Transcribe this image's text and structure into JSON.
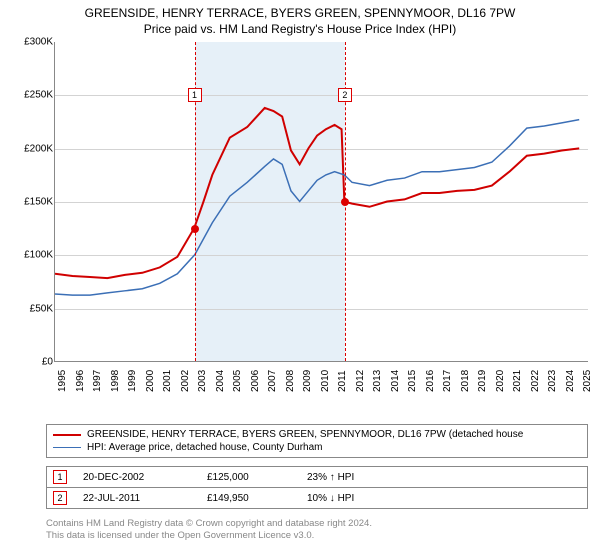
{
  "title_line1": "GREENSIDE, HENRY TERRACE, BYERS GREEN, SPENNYMOOR, DL16 7PW",
  "title_line2": "Price paid vs. HM Land Registry's House Price Index (HPI)",
  "chart": {
    "type": "line",
    "background_color": "#ffffff",
    "grid_color": "#d3d3d3",
    "axis_color": "#888888",
    "shaded_band_color": "#e6f0f8",
    "shaded_band_xstart": 2002.97,
    "shaded_band_xend": 2011.56,
    "x_axis": {
      "min": 1995,
      "max": 2025.5,
      "ticks": [
        1995,
        1996,
        1997,
        1998,
        1999,
        2000,
        2001,
        2002,
        2003,
        2004,
        2005,
        2006,
        2007,
        2008,
        2009,
        2010,
        2011,
        2012,
        2013,
        2014,
        2015,
        2016,
        2017,
        2018,
        2019,
        2020,
        2021,
        2022,
        2023,
        2024,
        2025
      ],
      "label_fontsize": 10,
      "label_rotation": -90
    },
    "y_axis": {
      "min": 0,
      "max": 300000,
      "ticks": [
        0,
        50000,
        100000,
        150000,
        200000,
        250000,
        300000
      ],
      "tick_labels": [
        "£0",
        "£50K",
        "£100K",
        "£150K",
        "£200K",
        "£250K",
        "£300K"
      ],
      "label_fontsize": 10
    },
    "series": [
      {
        "id": "greenside",
        "label": "GREENSIDE, HENRY TERRACE, BYERS GREEN, SPENNYMOOR, DL16 7PW (detached house",
        "color": "#d00000",
        "line_width": 2,
        "points": [
          [
            1995,
            82000
          ],
          [
            1996,
            80000
          ],
          [
            1997,
            79000
          ],
          [
            1998,
            78000
          ],
          [
            1999,
            81000
          ],
          [
            2000,
            83000
          ],
          [
            2001,
            88000
          ],
          [
            2002,
            98000
          ],
          [
            2002.97,
            125000
          ],
          [
            2003.5,
            150000
          ],
          [
            2004,
            175000
          ],
          [
            2005,
            210000
          ],
          [
            2006,
            220000
          ],
          [
            2007,
            238000
          ],
          [
            2007.5,
            235000
          ],
          [
            2008,
            230000
          ],
          [
            2008.5,
            198000
          ],
          [
            2009,
            185000
          ],
          [
            2009.5,
            200000
          ],
          [
            2010,
            212000
          ],
          [
            2010.5,
            218000
          ],
          [
            2011,
            222000
          ],
          [
            2011.4,
            218000
          ],
          [
            2011.56,
            149950
          ],
          [
            2012,
            148000
          ],
          [
            2013,
            145000
          ],
          [
            2014,
            150000
          ],
          [
            2015,
            152000
          ],
          [
            2016,
            158000
          ],
          [
            2017,
            158000
          ],
          [
            2018,
            160000
          ],
          [
            2019,
            161000
          ],
          [
            2020,
            165000
          ],
          [
            2021,
            178000
          ],
          [
            2022,
            193000
          ],
          [
            2023,
            195000
          ],
          [
            2024,
            198000
          ],
          [
            2025,
            200000
          ]
        ]
      },
      {
        "id": "hpi",
        "label": "HPI: Average price, detached house, County Durham",
        "color": "#3b6fb6",
        "line_width": 1.5,
        "points": [
          [
            1995,
            63000
          ],
          [
            1996,
            62000
          ],
          [
            1997,
            62000
          ],
          [
            1998,
            64000
          ],
          [
            1999,
            66000
          ],
          [
            2000,
            68000
          ],
          [
            2001,
            73000
          ],
          [
            2002,
            82000
          ],
          [
            2003,
            100000
          ],
          [
            2004,
            130000
          ],
          [
            2005,
            155000
          ],
          [
            2006,
            168000
          ],
          [
            2007,
            183000
          ],
          [
            2007.5,
            190000
          ],
          [
            2008,
            185000
          ],
          [
            2008.5,
            160000
          ],
          [
            2009,
            150000
          ],
          [
            2009.5,
            160000
          ],
          [
            2010,
            170000
          ],
          [
            2010.5,
            175000
          ],
          [
            2011,
            178000
          ],
          [
            2011.56,
            175000
          ],
          [
            2012,
            168000
          ],
          [
            2013,
            165000
          ],
          [
            2014,
            170000
          ],
          [
            2015,
            172000
          ],
          [
            2016,
            178000
          ],
          [
            2017,
            178000
          ],
          [
            2018,
            180000
          ],
          [
            2019,
            182000
          ],
          [
            2020,
            187000
          ],
          [
            2021,
            202000
          ],
          [
            2022,
            219000
          ],
          [
            2023,
            221000
          ],
          [
            2024,
            224000
          ],
          [
            2025,
            227000
          ]
        ]
      }
    ],
    "markers": [
      {
        "n": "1",
        "x": 2002.97,
        "y": 125000,
        "box_y": 250000
      },
      {
        "n": "2",
        "x": 2011.56,
        "y": 149950,
        "box_y": 250000
      }
    ]
  },
  "legend": {
    "fontsize": 10,
    "border_color": "#888888"
  },
  "marker_table": {
    "rows": [
      {
        "n": "1",
        "date": "20-DEC-2002",
        "price": "£125,000",
        "pct": "23% ↑ HPI"
      },
      {
        "n": "2",
        "date": "22-JUL-2011",
        "price": "£149,950",
        "pct": "10% ↓ HPI"
      }
    ],
    "fontsize": 10,
    "border_color": "#888888"
  },
  "footer": {
    "line1": "Contains HM Land Registry data © Crown copyright and database right 2024.",
    "line2": "This data is licensed under the Open Government Licence v3.0.",
    "color": "#888888",
    "fontsize": 9.5
  }
}
